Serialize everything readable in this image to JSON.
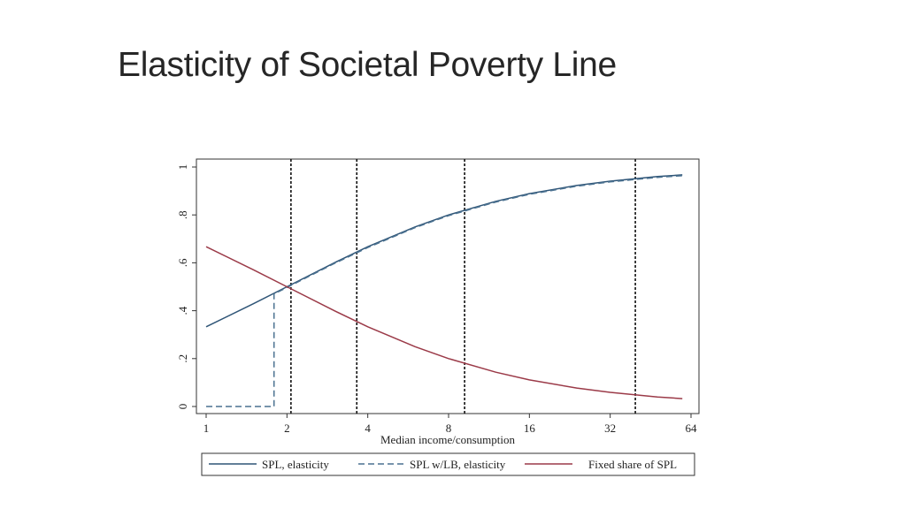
{
  "slide": {
    "title": "Elasticity of Societal Poverty Line"
  },
  "chart_data": {
    "type": "line",
    "title": "",
    "xlabel": "Median income/consumption",
    "ylabel": "",
    "xscale": "log2",
    "xlim": [
      1,
      64
    ],
    "ylim": [
      0,
      1
    ],
    "xticks": [
      1,
      2,
      4,
      8,
      16,
      32,
      64
    ],
    "xtick_labels": [
      "1",
      "2",
      "4",
      "8",
      "16",
      "32",
      "64"
    ],
    "yticks": [
      0,
      0.2,
      0.4,
      0.6,
      0.8,
      1
    ],
    "ytick_labels": [
      "0",
      ".2",
      ".4",
      ".6",
      ".8",
      "1"
    ],
    "grid": false,
    "legend": "bottom",
    "vertical_reference_lines": [
      2.07,
      3.64,
      9.18,
      39.7
    ],
    "series": [
      {
        "name": "SPL, elasticity",
        "color": "#2f5577",
        "style": "solid",
        "x": [
          1,
          1.5,
          2,
          3,
          4,
          6,
          8,
          12,
          16,
          24,
          32,
          48,
          59.4
        ],
        "y": [
          0.333,
          0.429,
          0.5,
          0.6,
          0.667,
          0.75,
          0.8,
          0.857,
          0.889,
          0.923,
          0.941,
          0.96,
          0.967
        ]
      },
      {
        "name": "SPL w/LB, elasticity",
        "color": "#4a7190",
        "style": "dashed",
        "x": [
          1,
          1.79,
          1.79,
          2,
          3,
          4,
          6,
          8,
          12,
          16,
          24,
          32,
          48,
          59.4
        ],
        "y": [
          0,
          0,
          0.47,
          0.497,
          0.597,
          0.664,
          0.747,
          0.797,
          0.854,
          0.886,
          0.92,
          0.938,
          0.957,
          0.964
        ]
      },
      {
        "name": "Fixed share of SPL",
        "color": "#9b3a48",
        "style": "solid",
        "x": [
          1,
          1.5,
          2,
          3,
          4,
          6,
          8,
          12,
          16,
          24,
          32,
          48,
          59.4
        ],
        "y": [
          0.667,
          0.571,
          0.5,
          0.4,
          0.333,
          0.25,
          0.2,
          0.143,
          0.111,
          0.077,
          0.059,
          0.04,
          0.033
        ]
      }
    ]
  }
}
